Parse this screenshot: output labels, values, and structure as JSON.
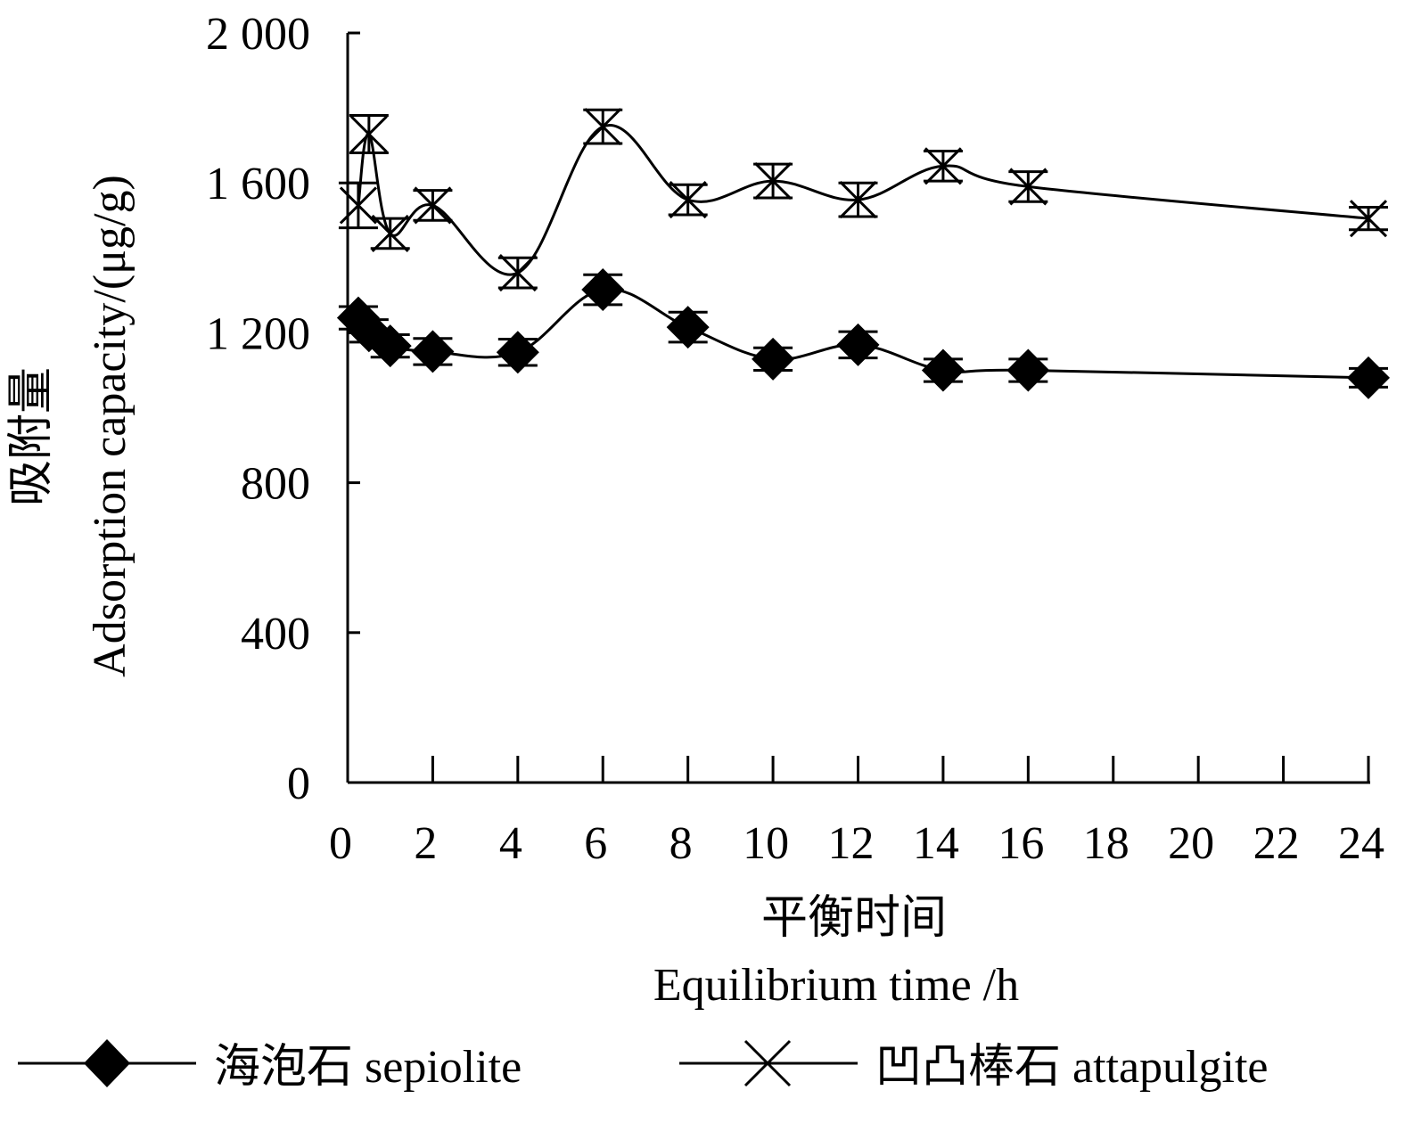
{
  "chart_data": {
    "type": "line",
    "title": "",
    "xlabel_cn": "平衡时间",
    "xlabel_en": "Equilibrium time /h",
    "ylabel_cn": "吸附量",
    "ylabel_en": "Adsorption capacity/(μg/g)",
    "xlim": [
      0,
      24
    ],
    "ylim": [
      0,
      2000
    ],
    "x_ticks": [
      0,
      2,
      4,
      6,
      8,
      10,
      12,
      14,
      16,
      18,
      20,
      22,
      24
    ],
    "x_tick_labels": [
      "0",
      "2",
      "4",
      "6",
      "8",
      "10",
      "12",
      "14",
      "16",
      "18",
      "20",
      "22",
      "24"
    ],
    "y_ticks": [
      0,
      400,
      800,
      1200,
      1600,
      2000
    ],
    "y_tick_labels": [
      "0",
      "400",
      "800",
      "1 200",
      "1 600",
      "2 000"
    ],
    "grid": false,
    "legend_position": "bottom",
    "series": [
      {
        "name": "海泡石 sepiolite",
        "marker": "diamond",
        "color": "#000000",
        "points": [
          {
            "x": 0.25,
            "y": 1240,
            "err": 30
          },
          {
            "x": 0.5,
            "y": 1205,
            "err": 30
          },
          {
            "x": 1,
            "y": 1165,
            "err": 30
          },
          {
            "x": 2,
            "y": 1150,
            "err": 35
          },
          {
            "x": 4,
            "y": 1148,
            "err": 35
          },
          {
            "x": 6,
            "y": 1315,
            "err": 40
          },
          {
            "x": 8,
            "y": 1215,
            "err": 40
          },
          {
            "x": 10,
            "y": 1130,
            "err": 30
          },
          {
            "x": 12,
            "y": 1168,
            "err": 35
          },
          {
            "x": 14,
            "y": 1100,
            "err": 30
          },
          {
            "x": 16,
            "y": 1100,
            "err": 30
          },
          {
            "x": 24,
            "y": 1080,
            "err": 25
          }
        ]
      },
      {
        "name": "凹凸棒石 attapulgite",
        "marker": "x",
        "color": "#000000",
        "points": [
          {
            "x": 0.25,
            "y": 1540,
            "err": 60
          },
          {
            "x": 0.5,
            "y": 1730,
            "err": 50
          },
          {
            "x": 1,
            "y": 1465,
            "err": 40
          },
          {
            "x": 2,
            "y": 1540,
            "err": 40
          },
          {
            "x": 4,
            "y": 1360,
            "err": 40
          },
          {
            "x": 6,
            "y": 1750,
            "err": 45
          },
          {
            "x": 8,
            "y": 1555,
            "err": 40
          },
          {
            "x": 10,
            "y": 1605,
            "err": 45
          },
          {
            "x": 12,
            "y": 1555,
            "err": 45
          },
          {
            "x": 14,
            "y": 1645,
            "err": 40
          },
          {
            "x": 16,
            "y": 1590,
            "err": 40
          },
          {
            "x": 24,
            "y": 1505,
            "err": 30
          }
        ]
      }
    ]
  }
}
